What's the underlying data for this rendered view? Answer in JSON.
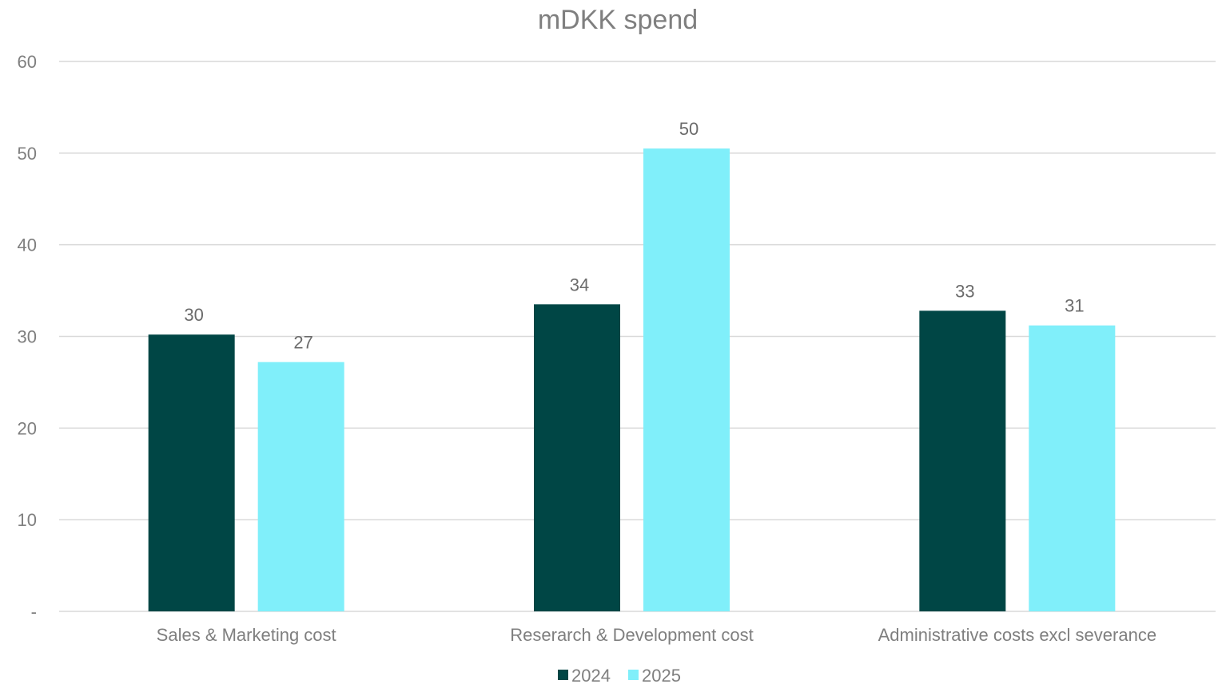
{
  "chart_data": {
    "type": "bar",
    "title": "mDKK spend",
    "categories": [
      "Sales & Marketing cost",
      "Reserarch & Development cost",
      "Administrative costs excl severance"
    ],
    "series": [
      {
        "name": "2024",
        "color": "#004645",
        "values": [
          30.2,
          33.5,
          32.8
        ],
        "labels": [
          "30",
          "34",
          "33"
        ]
      },
      {
        "name": "2025",
        "color": "#80EFFA",
        "values": [
          27.2,
          50.5,
          31.2
        ],
        "labels": [
          "27",
          "50",
          "31"
        ]
      }
    ],
    "ylim": [
      0,
      60
    ],
    "yticks": [
      {
        "value": 0,
        "label": "-"
      },
      {
        "value": 10,
        "label": "10"
      },
      {
        "value": 20,
        "label": "20"
      },
      {
        "value": 30,
        "label": "30"
      },
      {
        "value": 40,
        "label": "40"
      },
      {
        "value": 50,
        "label": "50"
      },
      {
        "value": 60,
        "label": "60"
      }
    ],
    "grid": true,
    "legend_position": "bottom"
  }
}
